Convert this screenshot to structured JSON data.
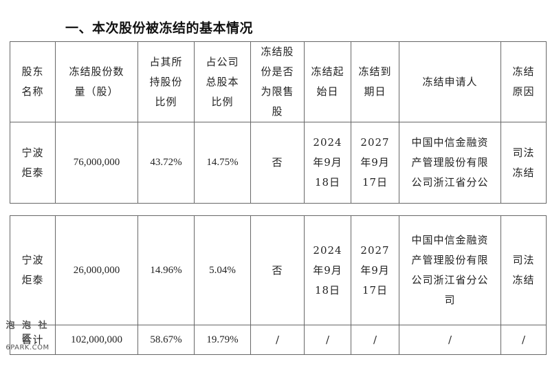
{
  "section_title": "一、本次股份被冻结的基本情况",
  "table1": {
    "headers": [
      "股东\n名称",
      "冻结股份数\n量（股）",
      "占其所\n持股份\n比例",
      "占公司\n总股本\n比例",
      "冻结股\n份是否\n为限售\n股",
      "冻结起\n始日",
      "冻结到\n期日",
      "冻结申请人",
      "冻结\n原因"
    ],
    "row": {
      "holder": "宁波\n炬泰",
      "shares": "76,000,000",
      "pct_held": "43.72%",
      "pct_total": "14.75%",
      "restricted": "否",
      "start": "2024\n年9月\n18日",
      "end": "2027\n年9月\n17日",
      "applicant": "中国中信金融资\n产管理股份有限\n公司浙江省分公",
      "reason": "司法\n冻结"
    }
  },
  "table2": {
    "row": {
      "holder": "宁波\n炬泰",
      "shares": "26,000,000",
      "pct_held": "14.96%",
      "pct_total": "5.04%",
      "restricted": "否",
      "start": "2024\n年9月\n18日",
      "end": "2027\n年9月\n17日",
      "applicant": "中国中信金融资\n产管理股份有限\n公司浙江省分公\n司",
      "reason": "司法\n冻结"
    },
    "total": {
      "label": "合计",
      "shares": "102,000,000",
      "pct_held": "58.67%",
      "pct_total": "19.79%",
      "restricted": "/",
      "start": "/",
      "end": "/",
      "applicant": "/",
      "reason": "/"
    }
  },
  "watermark": {
    "cn": "泡 泡 社 区",
    "en": "6PARK.COM"
  }
}
